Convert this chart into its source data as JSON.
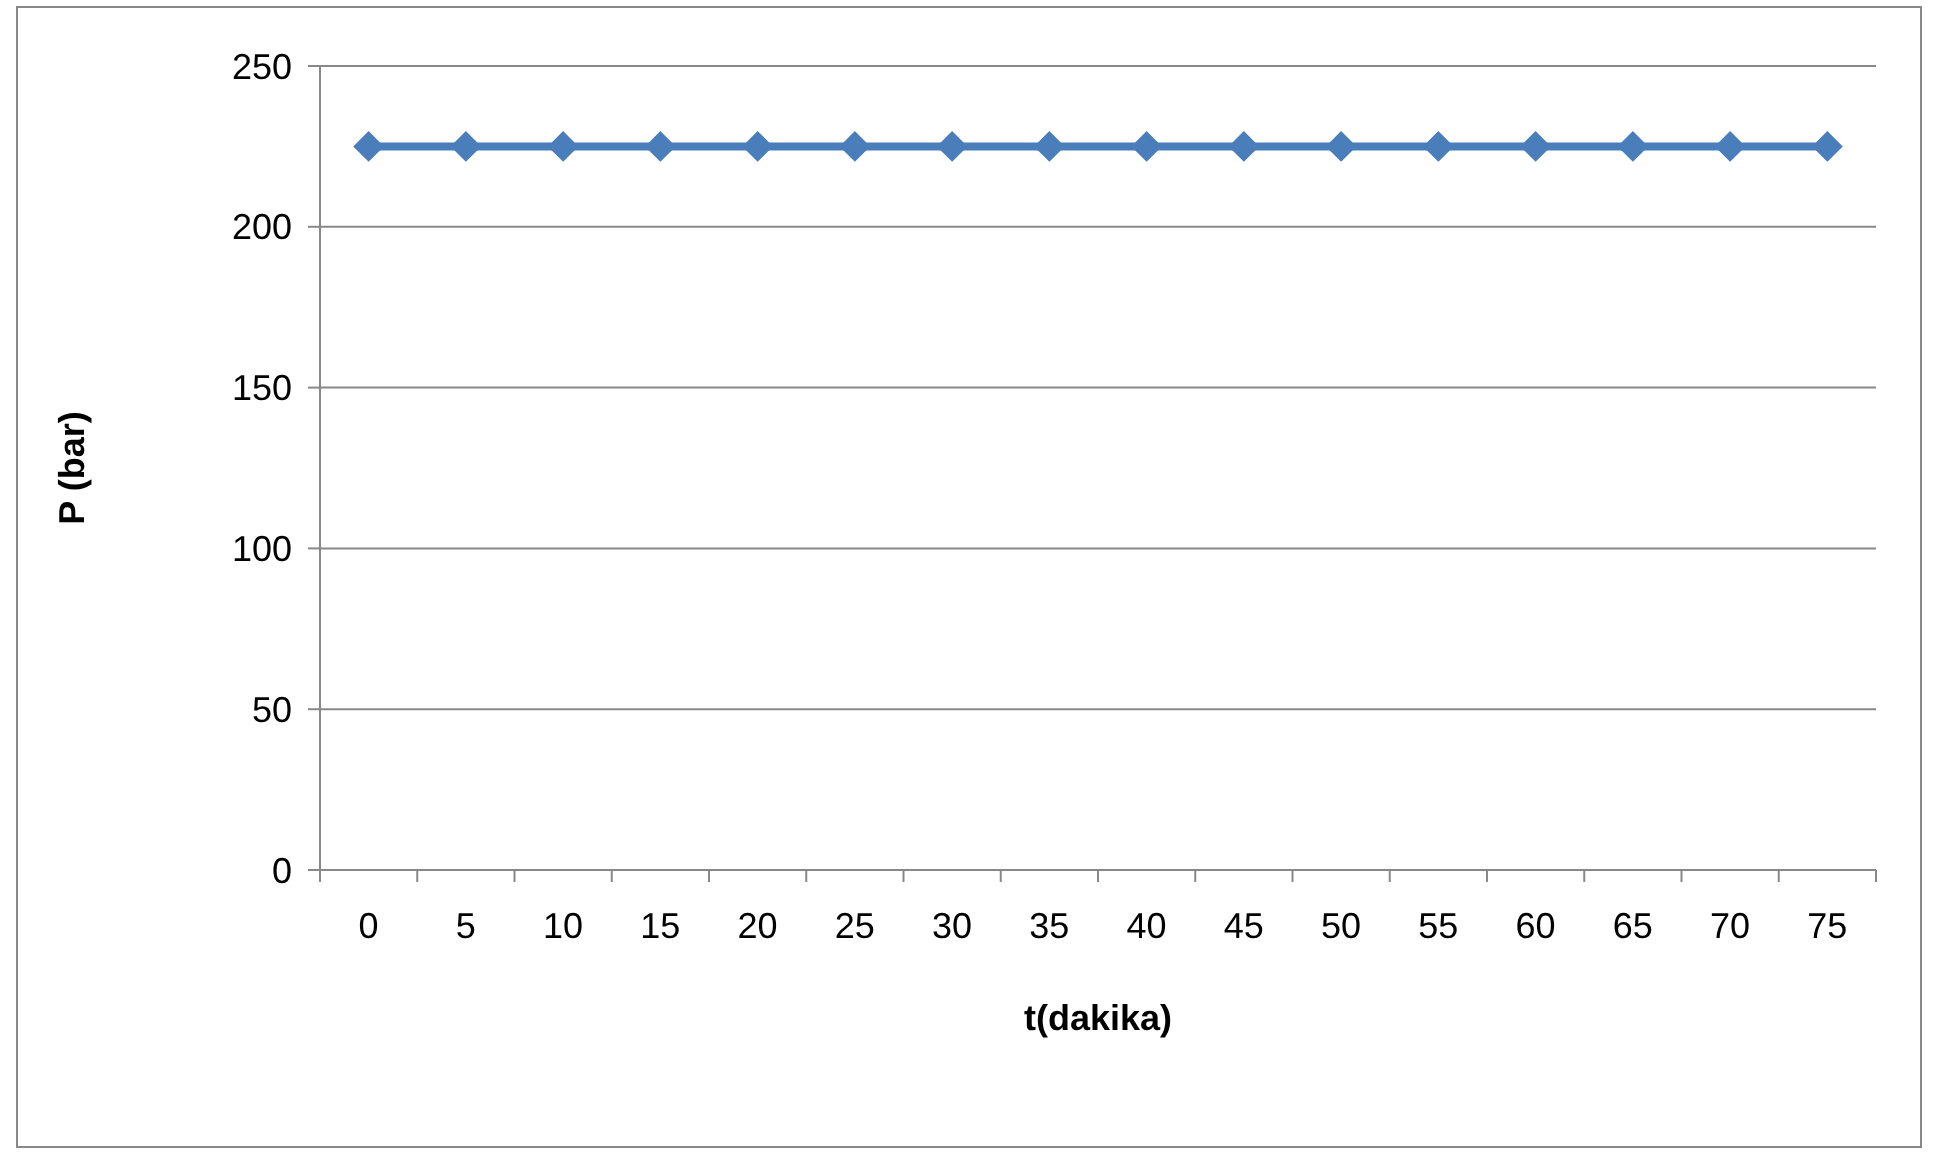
{
  "chart_data": {
    "type": "line",
    "xlabel": "t(dakika)",
    "ylabel": "P (bar)",
    "categories": [
      "0",
      "5",
      "10",
      "15",
      "20",
      "25",
      "30",
      "35",
      "40",
      "45",
      "50",
      "55",
      "60",
      "65",
      "70",
      "75"
    ],
    "series": [
      {
        "color": "#4a7ebb",
        "values": [
          225,
          225,
          225,
          225,
          225,
          225,
          225,
          225,
          225,
          225,
          225,
          225,
          225,
          225,
          225,
          225
        ]
      }
    ],
    "ylim": [
      0,
      250
    ],
    "yticks": [
      0,
      50,
      100,
      150,
      200,
      250
    ],
    "grid": "y",
    "marker": "diamond",
    "line_style": "solid"
  }
}
